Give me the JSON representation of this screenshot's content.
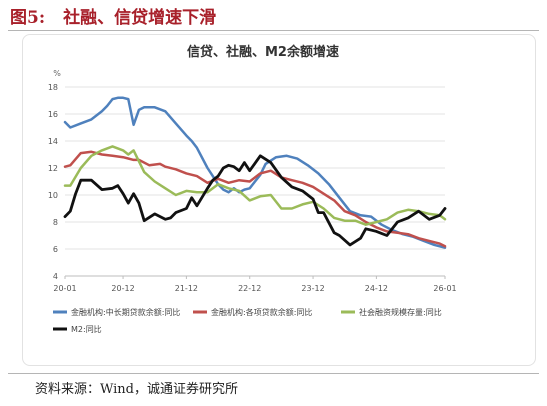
{
  "figure": {
    "number": "图5:",
    "caption": "社融、信贷增速下滑",
    "source": "资料来源：Wind，诚通证券研究所"
  },
  "chart_data": {
    "type": "line",
    "title": "信贷、社融、M2余额增速",
    "yunit": "%",
    "xlabel": "",
    "ylabel": "",
    "ylim": [
      4,
      18
    ],
    "yticks": [
      4,
      6,
      8,
      10,
      12,
      14,
      16,
      18
    ],
    "xlim": [
      "2020-01",
      "2026-01"
    ],
    "xtick_labels": [
      "20-01",
      "20-12",
      "21-12",
      "22-12",
      "23-12",
      "24-12",
      "26-01"
    ],
    "xtick_dates": [
      "2020-01",
      "2020-12",
      "2021-12",
      "2022-12",
      "2023-12",
      "2024-12",
      "2026-01"
    ],
    "grid": true,
    "legend_position": "bottom",
    "series": [
      {
        "name": "金融机构:中长期贷款余额:同比",
        "color": "#4f81bd",
        "dates": [
          "2020-01",
          "2020-02",
          "2020-04",
          "2020-06",
          "2020-08",
          "2020-09",
          "2020-10",
          "2020-11",
          "2020-12",
          "2021-01",
          "2021-02",
          "2021-03",
          "2021-04",
          "2021-05",
          "2021-06",
          "2021-08",
          "2021-10",
          "2021-12",
          "2022-01",
          "2022-02",
          "2022-04",
          "2022-05",
          "2022-06",
          "2022-07",
          "2022-08",
          "2022-09",
          "2022-10",
          "2022-11",
          "2022-12",
          "2023-01",
          "2023-02",
          "2023-03",
          "2023-05",
          "2023-07",
          "2023-09",
          "2023-11",
          "2024-01",
          "2024-03",
          "2024-05",
          "2024-07",
          "2024-09",
          "2024-11",
          "2025-01",
          "2025-03",
          "2025-05",
          "2025-07",
          "2025-09",
          "2025-11",
          "2026-01"
        ],
        "values": [
          15.4,
          15.0,
          15.3,
          15.6,
          16.2,
          16.6,
          17.1,
          17.2,
          17.2,
          17.1,
          15.2,
          16.3,
          16.5,
          16.5,
          16.5,
          16.2,
          15.3,
          14.4,
          14.0,
          13.5,
          12.0,
          11.4,
          10.8,
          10.4,
          10.2,
          10.5,
          10.2,
          10.4,
          10.5,
          11.0,
          11.5,
          12.3,
          12.8,
          12.9,
          12.7,
          12.2,
          11.6,
          10.8,
          9.8,
          8.8,
          8.5,
          8.4,
          7.8,
          7.4,
          7.1,
          6.9,
          6.6,
          6.3,
          6.1
        ]
      },
      {
        "name": "金融机构:各项贷款余额:同比",
        "color": "#c0504d",
        "dates": [
          "2020-01",
          "2020-02",
          "2020-04",
          "2020-06",
          "2020-08",
          "2020-10",
          "2020-12",
          "2021-02",
          "2021-03",
          "2021-05",
          "2021-07",
          "2021-08",
          "2021-10",
          "2021-12",
          "2022-02",
          "2022-04",
          "2022-06",
          "2022-08",
          "2022-10",
          "2022-12",
          "2023-02",
          "2023-04",
          "2023-06",
          "2023-08",
          "2023-10",
          "2023-12",
          "2024-02",
          "2024-04",
          "2024-06",
          "2024-08",
          "2024-10",
          "2024-12",
          "2025-02",
          "2025-04",
          "2025-06",
          "2025-08",
          "2025-10",
          "2025-12",
          "2026-01"
        ],
        "values": [
          12.1,
          12.2,
          13.1,
          13.2,
          13.0,
          12.9,
          12.8,
          12.6,
          12.6,
          12.2,
          12.3,
          12.1,
          11.9,
          11.6,
          11.4,
          10.9,
          11.2,
          10.9,
          11.1,
          11.0,
          11.6,
          11.8,
          11.3,
          11.1,
          10.9,
          10.6,
          10.1,
          9.6,
          8.8,
          8.5,
          8.0,
          7.6,
          7.3,
          7.2,
          7.1,
          6.8,
          6.6,
          6.4,
          6.2
        ]
      },
      {
        "name": "社会融资规模存量:同比",
        "color": "#9bbb59",
        "dates": [
          "2020-01",
          "2020-02",
          "2020-04",
          "2020-06",
          "2020-08",
          "2020-10",
          "2020-12",
          "2021-01",
          "2021-02",
          "2021-04",
          "2021-06",
          "2021-08",
          "2021-10",
          "2021-12",
          "2022-02",
          "2022-04",
          "2022-06",
          "2022-08",
          "2022-10",
          "2022-12",
          "2023-02",
          "2023-04",
          "2023-06",
          "2023-08",
          "2023-10",
          "2023-12",
          "2024-02",
          "2024-04",
          "2024-06",
          "2024-08",
          "2024-10",
          "2024-12",
          "2025-02",
          "2025-04",
          "2025-06",
          "2025-08",
          "2025-10",
          "2025-12",
          "2026-01"
        ],
        "values": [
          10.7,
          10.7,
          12.0,
          12.9,
          13.3,
          13.6,
          13.3,
          13.0,
          13.3,
          11.7,
          11.0,
          10.5,
          10.0,
          10.3,
          10.2,
          10.2,
          10.8,
          10.5,
          10.3,
          9.6,
          9.9,
          10.0,
          9.0,
          9.0,
          9.3,
          9.5,
          9.0,
          8.3,
          8.1,
          8.1,
          7.8,
          8.0,
          8.2,
          8.7,
          8.9,
          8.8,
          8.6,
          8.5,
          8.2
        ]
      },
      {
        "name": "M2:同比",
        "color": "#111111",
        "dates": [
          "2020-01",
          "2020-02",
          "2020-03",
          "2020-04",
          "2020-06",
          "2020-08",
          "2020-10",
          "2020-11",
          "2020-12",
          "2021-01",
          "2021-02",
          "2021-03",
          "2021-04",
          "2021-06",
          "2021-08",
          "2021-09",
          "2021-10",
          "2021-12",
          "2022-01",
          "2022-02",
          "2022-04",
          "2022-05",
          "2022-06",
          "2022-07",
          "2022-08",
          "2022-09",
          "2022-10",
          "2022-11",
          "2022-12",
          "2023-02",
          "2023-04",
          "2023-06",
          "2023-08",
          "2023-10",
          "2023-12",
          "2024-01",
          "2024-02",
          "2024-04",
          "2024-05",
          "2024-07",
          "2024-09",
          "2024-10",
          "2024-12",
          "2025-02",
          "2025-04",
          "2025-06",
          "2025-08",
          "2025-10",
          "2025-12",
          "2026-01"
        ],
        "values": [
          8.4,
          8.8,
          10.1,
          11.1,
          11.1,
          10.4,
          10.5,
          10.7,
          10.1,
          9.4,
          10.1,
          9.4,
          8.1,
          8.6,
          8.2,
          8.3,
          8.7,
          9.0,
          9.8,
          9.2,
          10.5,
          11.1,
          11.4,
          12.0,
          12.2,
          12.1,
          11.8,
          12.4,
          11.8,
          12.9,
          12.4,
          11.3,
          10.6,
          10.3,
          9.7,
          8.7,
          8.7,
          7.2,
          7.0,
          6.3,
          6.8,
          7.5,
          7.3,
          7.0,
          8.0,
          8.3,
          8.8,
          8.2,
          8.5,
          9.0
        ]
      }
    ]
  }
}
